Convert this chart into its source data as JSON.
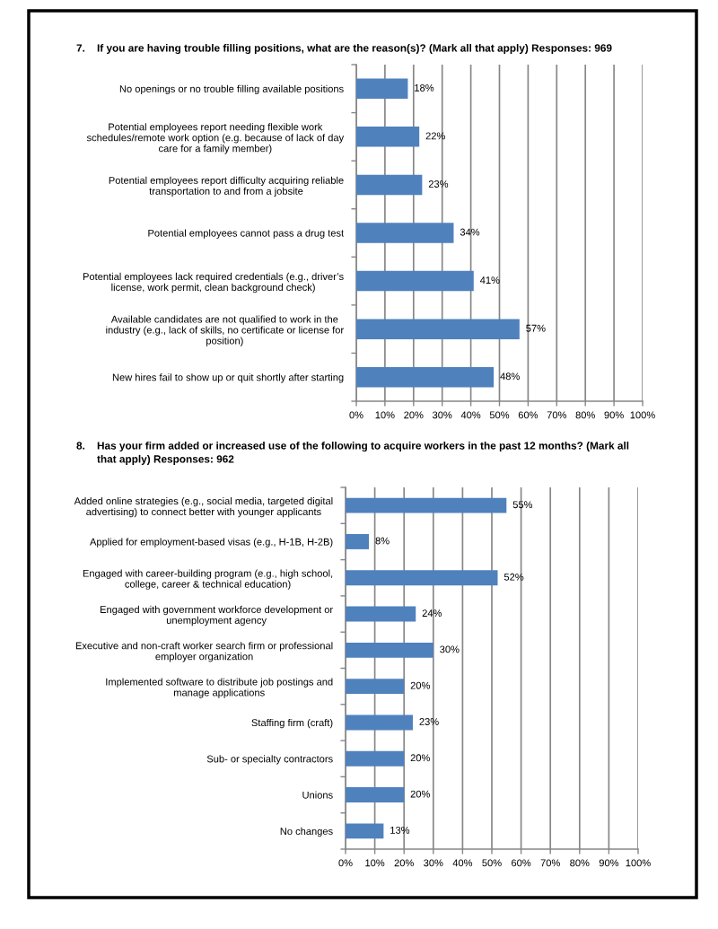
{
  "chart_data": [
    {
      "type": "bar",
      "orientation": "horizontal",
      "title": "7. If you are having trouble filling positions, what are the reason(s)? (Mark all that apply) Responses: 969",
      "categories": [
        "No openings or no trouble filling available positions",
        "Potential employees report needing flexible work\nschedules/remote work option (e.g. because of lack of day\ncare for a family member)",
        "Potential employees report difficulty acquiring reliable\ntransportation to and from a jobsite",
        "Potential employees cannot pass a drug test",
        "Potential employees lack required credentials (e.g., driver’s\nlicense, work permit, clean background check)",
        "Available candidates are not qualified to work in the\nindustry (e.g., lack of skills, no certificate or license for\nposition)",
        "New hires fail to show up or quit shortly after starting"
      ],
      "values": [
        18,
        22,
        23,
        34,
        41,
        57,
        48
      ],
      "value_labels": [
        "18%",
        "22%",
        "23%",
        "34%",
        "41%",
        "57%",
        "48%"
      ],
      "color": "#4f81bd",
      "xlim": [
        0,
        100
      ],
      "xticks": [
        {
          "value": 0,
          "label": "0%"
        },
        {
          "value": 10,
          "label": "10%"
        },
        {
          "value": 20,
          "label": "20%"
        },
        {
          "value": 30,
          "label": "30%"
        },
        {
          "value": 40,
          "label": "40%"
        },
        {
          "value": 50,
          "label": "50%"
        },
        {
          "value": 60,
          "label": "60%"
        },
        {
          "value": 70,
          "label": "70%"
        },
        {
          "value": 80,
          "label": "80%"
        },
        {
          "value": 90,
          "label": "90%"
        },
        {
          "value": 100,
          "label": "100%"
        }
      ],
      "grid": "x"
    },
    {
      "type": "bar",
      "orientation": "horizontal",
      "title": "8. Has your firm added or increased use of the following to acquire workers in the past 12 months? (Mark all\nthat apply) Responses: 962",
      "categories": [
        "Added online strategies (e.g., social media, targeted digital\nadvertising) to connect better with younger applicants",
        "Applied for employment-based visas (e.g., H-1B, H-2B)",
        "Engaged with career-building program (e.g., high school,\ncollege, career & technical education)",
        "Engaged with government workforce development or\nunemployment agency",
        "Executive and non-craft worker search firm or professional\nemployer organization",
        "Implemented software to distribute job postings and\nmanage applications",
        "Staffing firm (craft)",
        "Sub- or specialty contractors",
        "Unions",
        "No changes"
      ],
      "values": [
        55,
        8,
        52,
        24,
        30,
        20,
        23,
        20,
        20,
        13
      ],
      "value_labels": [
        "55%",
        "8%",
        "52%",
        "24%",
        "30%",
        "20%",
        "23%",
        "20%",
        "20%",
        "13%"
      ],
      "color": "#4f81bd",
      "xlim": [
        0,
        100
      ],
      "xticks": [
        {
          "value": 0,
          "label": "0%"
        },
        {
          "value": 10,
          "label": "10%"
        },
        {
          "value": 20,
          "label": "20%"
        },
        {
          "value": 30,
          "label": "30%"
        },
        {
          "value": 40,
          "label": "40%"
        },
        {
          "value": 50,
          "label": "50%"
        },
        {
          "value": 60,
          "label": "60%"
        },
        {
          "value": 70,
          "label": "70%"
        },
        {
          "value": 80,
          "label": "80%"
        },
        {
          "value": 90,
          "label": "90%"
        },
        {
          "value": 100,
          "label": "100%"
        }
      ],
      "grid": "x"
    }
  ]
}
